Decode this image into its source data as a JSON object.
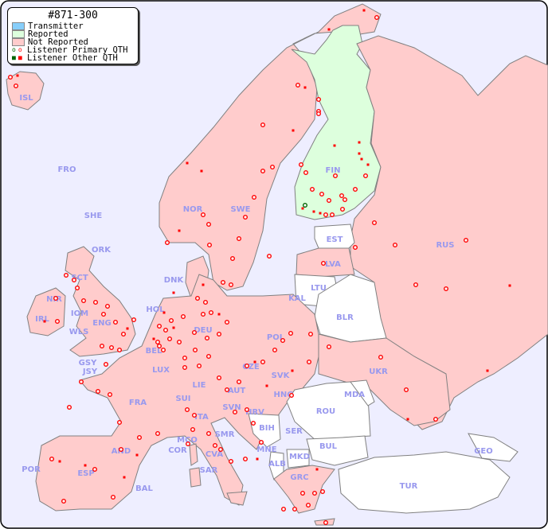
{
  "legend": {
    "title": "#871-300",
    "items": [
      {
        "label": "Transmitter",
        "color": "#87cefa"
      },
      {
        "label": "Reported",
        "color": "#ddffdd"
      },
      {
        "label": "Not Reported",
        "color": "#ffcccc"
      },
      {
        "label": "Listener Primary QTH",
        "marker": "circle",
        "colors": [
          "#006400",
          "#ff0000"
        ]
      },
      {
        "label": "Listener Other QTH",
        "marker": "square",
        "colors": [
          "#006400",
          "#ff0000"
        ]
      }
    ]
  },
  "colors": {
    "sea": "#eeeeff",
    "not_reported": "#ffcccc",
    "reported": "#ddffdd",
    "no_data": "#ffffff",
    "label": "#9999ee",
    "marker": "#ff0000",
    "marker_reported": "#006400"
  },
  "countries": {
    "reported": [
      "FIN"
    ],
    "not_reported": [
      "ISL",
      "FRO",
      "SHE",
      "ORK",
      "SCT",
      "NIR",
      "IRL",
      "IOM",
      "WLS",
      "ENG",
      "GSY",
      "JSY",
      "HOL",
      "BEL",
      "LUX",
      "DNK",
      "NOR",
      "SWE",
      "LVA",
      "KAL",
      "RUS",
      "POL",
      "DEU",
      "CZE",
      "SVK",
      "AUT",
      "HNG",
      "LIE",
      "SUI",
      "FRA",
      "ITA",
      "SVN",
      "HRV",
      "SER",
      "UKR",
      "MNE",
      "GRC",
      "SMR",
      "MCO",
      "COR",
      "CVA",
      "SAR",
      "AND",
      "ESP",
      "POR",
      "BAL"
    ],
    "no_data": [
      "EST",
      "LTU",
      "BLR",
      "ROU",
      "MDA",
      "BUL",
      "MKD",
      "ALB",
      "BIH",
      "TUR",
      "GEO"
    ]
  }
}
